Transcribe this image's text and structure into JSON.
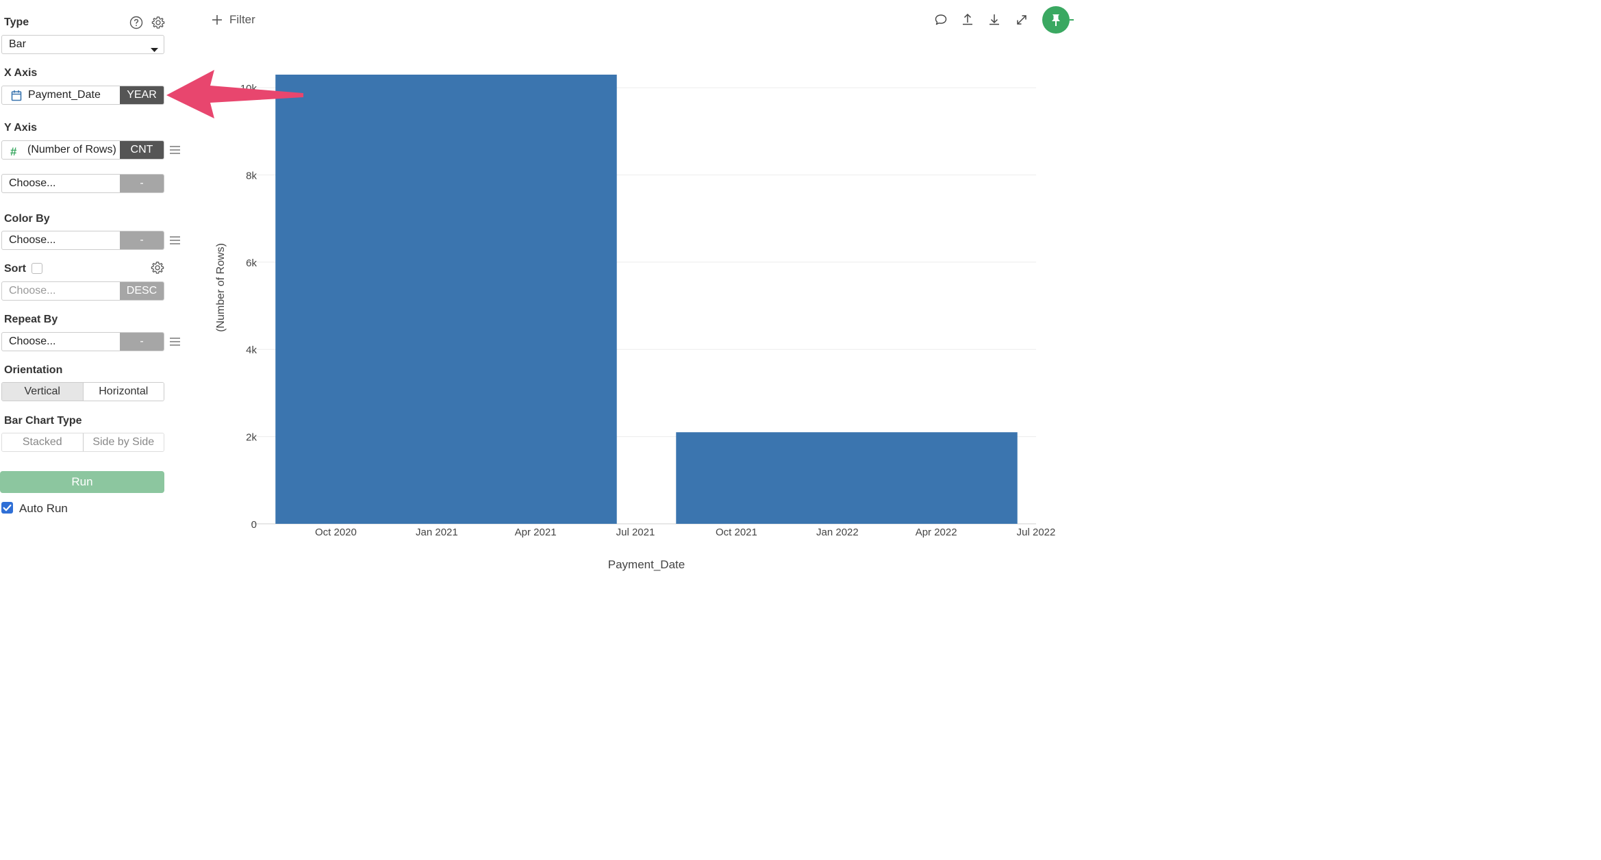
{
  "panel": {
    "type_label": "Type",
    "type_value": "Bar",
    "x_axis_label": "X Axis",
    "x_axis_field": "Payment_Date",
    "x_axis_agg": "YEAR",
    "y_axis_label": "Y Axis",
    "y_axis_field": "(Number of Rows)",
    "y_axis_agg": "CNT",
    "y_axis_second": "Choose...",
    "y_axis_second_agg": "-",
    "color_by_label": "Color By",
    "color_by_value": "Choose...",
    "color_by_agg": "-",
    "sort_label": "Sort",
    "sort_value": "Choose...",
    "sort_order": "DESC",
    "repeat_by_label": "Repeat By",
    "repeat_by_value": "Choose...",
    "repeat_by_agg": "-",
    "orientation_label": "Orientation",
    "orientation_options": [
      "Vertical",
      "Horizontal"
    ],
    "bar_type_label": "Bar Chart Type",
    "bar_type_options": [
      "Stacked",
      "Side by Side"
    ],
    "run_label": "Run",
    "auto_run_label": "Auto Run"
  },
  "toolbar": {
    "filter_label": "Filter"
  },
  "colors": {
    "bar": "#3b75af",
    "accent_green": "#3aa861",
    "arrow": "#e8466e"
  },
  "chart_data": {
    "type": "bar",
    "xlabel": "Payment_Date",
    "ylabel": "(Number of Rows)",
    "x_tick_labels": [
      "Oct 2020",
      "Jan 2021",
      "Apr 2021",
      "Jul 2021",
      "Oct 2021",
      "Jan 2022",
      "Apr 2022",
      "Jul 2022"
    ],
    "y_tick_labels": [
      "0",
      "2k",
      "4k",
      "6k",
      "8k",
      "10k"
    ],
    "y_ticks": [
      0,
      2000,
      4000,
      6000,
      8000,
      10000
    ],
    "ylim": [
      0,
      10300
    ],
    "x_range": [
      "2020-07-16",
      "2022-07-01"
    ],
    "bars": [
      {
        "x_start": "2020-08-07",
        "x_end": "2021-06-14",
        "value": 10300
      },
      {
        "x_start": "2021-08-07",
        "x_end": "2022-06-14",
        "value": 2100
      }
    ],
    "grid": true
  }
}
